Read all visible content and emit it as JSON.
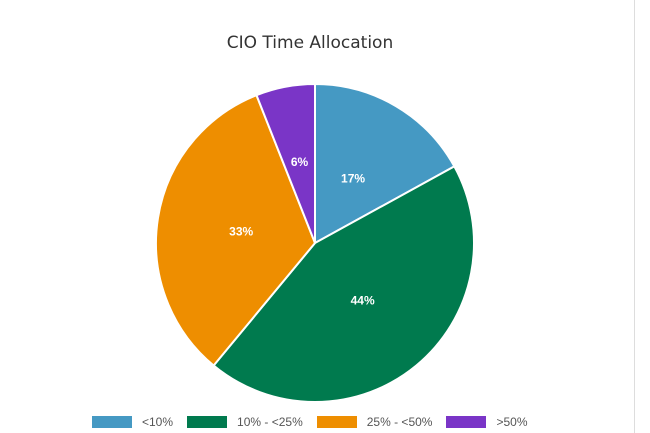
{
  "chart_data": {
    "type": "pie",
    "title": "CIO Time Allocation",
    "slices": [
      {
        "label": "<10%",
        "value": 17,
        "display": "17%",
        "color": "#4599c3"
      },
      {
        "label": "10% - <25%",
        "value": 44,
        "display": "44%",
        "color": "#007a4e"
      },
      {
        "label": "25% - <50%",
        "value": 33,
        "display": "33%",
        "color": "#ee8e00"
      },
      {
        "label": ">50%",
        "value": 6,
        "display": "6%",
        "color": "#7a35c7"
      }
    ],
    "legend_position": "bottom"
  }
}
